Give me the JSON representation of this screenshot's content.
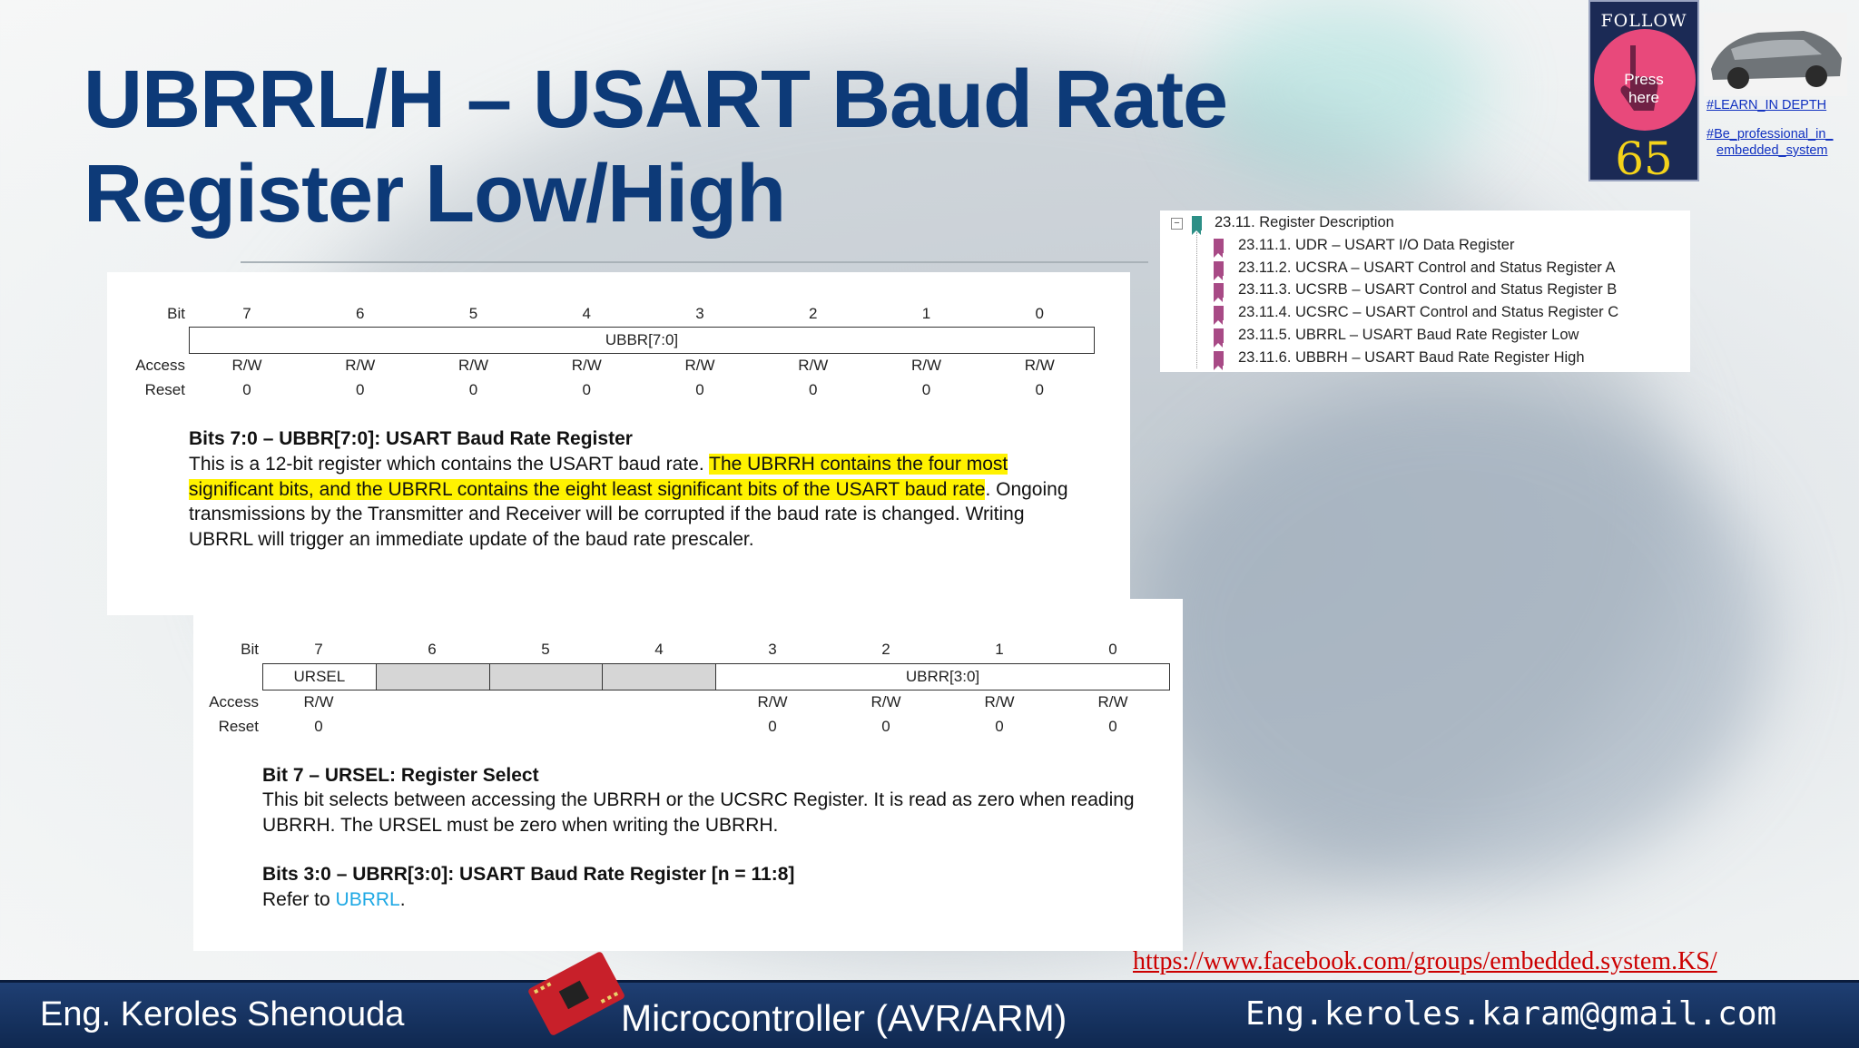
{
  "slide": {
    "title_line1": "UBRRL/H – USART Baud Rate",
    "title_line2": "Register Low/High"
  },
  "reg_low": {
    "bit_label": "Bit",
    "bits": [
      "7",
      "6",
      "5",
      "4",
      "3",
      "2",
      "1",
      "0"
    ],
    "field": "UBBR[7:0]",
    "access_label": "Access",
    "access": [
      "R/W",
      "R/W",
      "R/W",
      "R/W",
      "R/W",
      "R/W",
      "R/W",
      "R/W"
    ],
    "reset_label": "Reset",
    "reset": [
      "0",
      "0",
      "0",
      "0",
      "0",
      "0",
      "0",
      "0"
    ],
    "heading": "Bits 7:0 – UBBR[7:0]:  USART Baud Rate Register",
    "text_a": "This is a 12-bit register which contains the USART baud rate. ",
    "text_hl1": "The UBRRH contains the four most",
    "text_hl2": "significant bits, and the UBRRL contains the eight least significant bits of the USART baud rate",
    "text_b": ". Ongoing",
    "text_c": "transmissions by the Transmitter and Receiver will be corrupted if the baud rate is changed. Writing",
    "text_d": "UBRRL will trigger an immediate update of the baud rate prescaler."
  },
  "reg_high": {
    "bit_label": "Bit",
    "bits": [
      "7",
      "6",
      "5",
      "4",
      "3",
      "2",
      "1",
      "0"
    ],
    "field_ursel": "URSEL",
    "field_ubrr": "UBRR[3:0]",
    "access_label": "Access",
    "access_7": "R/W",
    "access_low": [
      "R/W",
      "R/W",
      "R/W",
      "R/W"
    ],
    "reset_label": "Reset",
    "reset_7": "0",
    "reset_low": [
      "0",
      "0",
      "0",
      "0"
    ],
    "heading1": "Bit 7 – URSEL:  Register Select",
    "para1_a": "This bit selects between accessing the UBRRH or the UCSRC Register. It is read as zero when reading",
    "para1_b": "UBRRH. The URSEL must be zero when writing the UBRRH.",
    "heading2": "Bits 3:0 – UBRR[3:0]:  USART Baud Rate Register [n = 11:8]",
    "para2_prefix": "Refer to ",
    "para2_link": "UBRRL",
    "para2_suffix": "."
  },
  "toc": {
    "parent": "23.11. Register Description",
    "items": [
      "23.11.1. UDR – USART I/O Data Register",
      "23.11.2. UCSRA – USART Control and Status Register A",
      "23.11.3. UCSRB – USART Control and Status Register B",
      "23.11.4. UCSRC – USART Control and Status Register C",
      "23.11.5. UBRRL – USART Baud Rate Register Low",
      "23.11.6. UBBRH – USART Baud Rate Register High"
    ]
  },
  "follow": {
    "label": "FOLLOW US",
    "press": "Press",
    "here": "here",
    "number": "65"
  },
  "tags": {
    "learn": "#LEARN_IN DEPTH",
    "be_pro_1": "#Be_professional_in_",
    "be_pro_2": "embedded_system"
  },
  "facebook_url": "https://www.facebook.com/groups/embedded.system.KS/",
  "footer": {
    "author": "Eng. Keroles Shenouda",
    "course": "Microcontroller (AVR/ARM)",
    "email": "Eng.keroles.karam@gmail.com"
  },
  "colors": {
    "title": "#0d3a78",
    "highlight": "#fff200",
    "footer": "#1f3f73",
    "link": "#1ea8e4"
  }
}
